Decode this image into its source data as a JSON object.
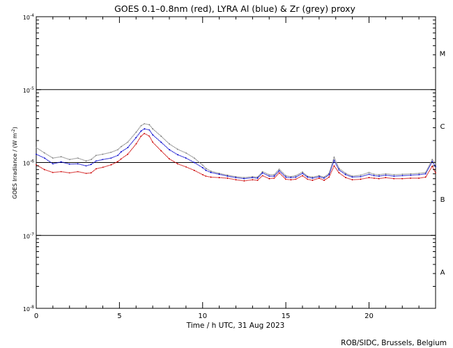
{
  "chart_data": {
    "type": "line",
    "title": "GOES 0.1–0.8nm (red), LYRA Al (blue) & Zr (grey) proxy",
    "xlabel": "Time / h UTC, 31 Aug 2023",
    "ylabel_main": "GOES Irradiance / (W m",
    "ylabel_sup": "-2",
    "ylabel_end": ")",
    "credit": "ROB/SIDC, Brussels, Belgium",
    "xlim": [
      0,
      24
    ],
    "x_ticks": [
      0,
      5,
      10,
      15,
      20
    ],
    "x_tick_labels": [
      "0",
      "5",
      "10",
      "15",
      "20"
    ],
    "y_scale": "log",
    "ylim": [
      1e-08,
      0.0001
    ],
    "y_ticks": [
      {
        "value": 0.0001,
        "base": "10",
        "exp": "-4"
      },
      {
        "value": 1e-05,
        "base": "10",
        "exp": "-5"
      },
      {
        "value": 1e-06,
        "base": "10",
        "exp": "-6"
      },
      {
        "value": 1e-07,
        "base": "10",
        "exp": "-7"
      },
      {
        "value": 1e-08,
        "base": "10",
        "exp": "-8"
      }
    ],
    "class_thresholds": [
      1e-05,
      1e-06,
      1e-07
    ],
    "flare_classes": [
      {
        "label": "M",
        "value": 3.16e-05
      },
      {
        "label": "C",
        "value": 3.16e-06
      },
      {
        "label": "B",
        "value": 3.16e-07
      },
      {
        "label": "A",
        "value": 3.16e-08
      }
    ],
    "colors": {
      "red": "#cc0000",
      "blue": "#0000cc",
      "grey": "#808080"
    },
    "x": [
      0,
      0.5,
      1,
      1.5,
      2,
      2.5,
      3,
      3.3,
      3.6,
      4,
      4.5,
      4.9,
      5.1,
      5.5,
      6,
      6.3,
      6.5,
      6.8,
      7,
      7.5,
      8,
      8.5,
      9,
      9.5,
      10,
      10.2,
      10.5,
      11,
      11.5,
      12,
      12.5,
      13,
      13.3,
      13.6,
      14,
      14.3,
      14.6,
      15,
      15.3,
      15.6,
      16,
      16.3,
      16.6,
      17,
      17.3,
      17.6,
      17.9,
      18.2,
      18.6,
      19,
      19.5,
      20,
      20.3,
      20.6,
      21,
      21.5,
      22,
      22.5,
      23,
      23.4,
      23.8,
      24
    ],
    "series": [
      {
        "name": "GOES 0.1-0.8nm",
        "color_key": "red",
        "values": [
          9.3e-07,
          8e-07,
          7.3e-07,
          7.5e-07,
          7.2e-07,
          7.5e-07,
          7.1e-07,
          7.2e-07,
          8.2e-07,
          8.6e-07,
          9.3e-07,
          1.03e-06,
          1.12e-06,
          1.3e-06,
          1.8e-06,
          2.3e-06,
          2.5e-06,
          2.3e-06,
          1.9e-06,
          1.45e-06,
          1.12e-06,
          9.6e-07,
          8.7e-07,
          7.8e-07,
          6.8e-07,
          6.5e-07,
          6.3e-07,
          6.2e-07,
          6.1e-07,
          5.8e-07,
          5.6e-07,
          5.8e-07,
          5.7e-07,
          6.6e-07,
          6e-07,
          6.1e-07,
          7.2e-07,
          5.9e-07,
          5.8e-07,
          5.9e-07,
          6.6e-07,
          5.9e-07,
          5.7e-07,
          6.1e-07,
          5.7e-07,
          6.3e-07,
          9e-07,
          7.2e-07,
          6.2e-07,
          5.8e-07,
          5.9e-07,
          6.2e-07,
          6.1e-07,
          6e-07,
          6.2e-07,
          6e-07,
          6e-07,
          6.1e-07,
          6.1e-07,
          6.3e-07,
          8.9e-07,
          7.2e-07
        ]
      },
      {
        "name": "LYRA Al proxy",
        "color_key": "blue",
        "values": [
          1.3e-06,
          1.15e-06,
          9.6e-07,
          1.02e-06,
          9.5e-07,
          9.6e-07,
          9e-07,
          9.4e-07,
          1.05e-06,
          1.1e-06,
          1.15e-06,
          1.25e-06,
          1.4e-06,
          1.6e-06,
          2.2e-06,
          2.7e-06,
          2.9e-06,
          2.8e-06,
          2.4e-06,
          1.9e-06,
          1.5e-06,
          1.28e-06,
          1.15e-06,
          1e-06,
          8.5e-07,
          7.8e-07,
          7.3e-07,
          6.9e-07,
          6.5e-07,
          6.2e-07,
          6e-07,
          6.2e-07,
          6.1e-07,
          7.2e-07,
          6.5e-07,
          6.5e-07,
          7.7e-07,
          6.3e-07,
          6.2e-07,
          6.3e-07,
          7.1e-07,
          6.3e-07,
          6.1e-07,
          6.4e-07,
          6.1e-07,
          6.8e-07,
          1.07e-06,
          7.9e-07,
          6.8e-07,
          6.3e-07,
          6.4e-07,
          6.9e-07,
          6.6e-07,
          6.5e-07,
          6.7e-07,
          6.5e-07,
          6.6e-07,
          6.7e-07,
          6.8e-07,
          7e-07,
          1.03e-06,
          8.8e-07
        ]
      },
      {
        "name": "LYRA Zr proxy",
        "color_key": "grey",
        "values": [
          1.6e-06,
          1.35e-06,
          1.15e-06,
          1.2e-06,
          1.1e-06,
          1.15e-06,
          1.05e-06,
          1.1e-06,
          1.25e-06,
          1.3e-06,
          1.38e-06,
          1.5e-06,
          1.65e-06,
          1.9e-06,
          2.6e-06,
          3.2e-06,
          3.4e-06,
          3.3e-06,
          2.9e-06,
          2.3e-06,
          1.8e-06,
          1.52e-06,
          1.35e-06,
          1.15e-06,
          9.2e-07,
          8.3e-07,
          7.6e-07,
          7.1e-07,
          6.7e-07,
          6.4e-07,
          6.2e-07,
          6.4e-07,
          6.3e-07,
          7.5e-07,
          6.8e-07,
          6.8e-07,
          8.1e-07,
          6.6e-07,
          6.4e-07,
          6.6e-07,
          7.4e-07,
          6.5e-07,
          6.3e-07,
          6.6e-07,
          6.3e-07,
          7.1e-07,
          1.18e-06,
          8.3e-07,
          7.1e-07,
          6.5e-07,
          6.7e-07,
          7.3e-07,
          6.9e-07,
          6.8e-07,
          7e-07,
          6.8e-07,
          6.9e-07,
          7e-07,
          7.1e-07,
          7.3e-07,
          1.1e-06,
          9.6e-07
        ]
      }
    ]
  }
}
